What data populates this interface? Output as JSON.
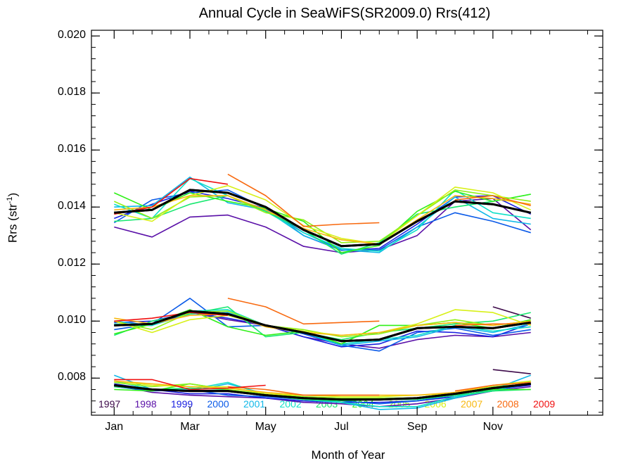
{
  "title": "Annual Cycle in SeaWiFS(SR2009.0) Rrs(412)",
  "xlabel": "Month of Year",
  "ylabel_main": "Rrs (str",
  "ylabel_sup": "-1",
  "ylabel_close": ")",
  "chart_data": {
    "type": "line",
    "title": "Annual Cycle in SeaWiFS(SR2009.0) Rrs(412)",
    "xlabel": "Month of Year",
    "ylabel": "Rrs (str-1)",
    "xlim": [
      0.4,
      13.9
    ],
    "ylim": [
      0.0067,
      0.0202
    ],
    "x_ticks": [
      {
        "value": 1,
        "label": "Jan"
      },
      {
        "value": 3,
        "label": "Mar"
      },
      {
        "value": 5,
        "label": "May"
      },
      {
        "value": 7,
        "label": "Jul"
      },
      {
        "value": 9,
        "label": "Sep"
      },
      {
        "value": 11,
        "label": "Nov"
      }
    ],
    "y_ticks": [
      {
        "value": 0.008,
        "label": "0.008"
      },
      {
        "value": 0.01,
        "label": "0.010"
      },
      {
        "value": 0.012,
        "label": "0.012"
      },
      {
        "value": 0.014,
        "label": "0.014"
      },
      {
        "value": 0.016,
        "label": "0.016"
      },
      {
        "value": 0.018,
        "label": "0.018"
      },
      {
        "value": 0.02,
        "label": "0.020"
      }
    ],
    "x": [
      1,
      2,
      3,
      4,
      5,
      6,
      7,
      8,
      9,
      10,
      11,
      12
    ],
    "groups": [
      "upper",
      "middle",
      "lower"
    ],
    "series": [
      {
        "name": "1997",
        "color": "#3d0a4a",
        "upper": [
          null,
          null,
          null,
          null,
          null,
          null,
          null,
          null,
          null,
          null,
          null,
          null
        ],
        "middle": [
          null,
          null,
          null,
          null,
          null,
          null,
          null,
          null,
          null,
          null,
          0.0105,
          0.0101
        ],
        "lower": [
          null,
          null,
          null,
          null,
          null,
          null,
          null,
          null,
          null,
          null,
          0.0083,
          0.00815
        ]
      },
      {
        "name": "1998",
        "color": "#5a10a8",
        "upper": [
          0.0133,
          0.01295,
          0.01365,
          0.01372,
          0.0133,
          0.01262,
          0.0124,
          0.0125,
          0.013,
          0.0142,
          0.0143,
          0.0132
        ],
        "middle": [
          0.00985,
          0.00985,
          0.0103,
          0.01005,
          0.00985,
          0.00945,
          0.0092,
          0.00905,
          0.00935,
          0.0095,
          0.00945,
          0.0096
        ],
        "lower": [
          0.00775,
          0.0075,
          0.0074,
          0.00735,
          0.0073,
          0.00715,
          0.0071,
          0.007,
          0.0071,
          0.0073,
          0.00755,
          0.0077
        ]
      },
      {
        "name": "1999",
        "color": "#1a20e0",
        "upper": [
          0.0136,
          0.0141,
          0.01455,
          0.0143,
          0.01395,
          0.013,
          0.01248,
          0.01255,
          0.0134,
          0.01435,
          0.0144,
          0.01375
        ],
        "middle": [
          0.00995,
          0.01,
          0.0103,
          0.0101,
          0.00985,
          0.00945,
          0.0091,
          0.0092,
          0.00965,
          0.0096,
          0.00945,
          0.0099
        ],
        "lower": [
          0.0078,
          0.0076,
          0.00745,
          0.00745,
          0.0073,
          0.0072,
          0.00715,
          0.00715,
          0.0072,
          0.00735,
          0.0076,
          0.00775
        ]
      },
      {
        "name": "2000",
        "color": "#0a5ae8",
        "upper": [
          0.01345,
          0.01425,
          0.0145,
          0.0146,
          0.01395,
          0.0131,
          0.0125,
          0.0125,
          0.0133,
          0.0138,
          0.0135,
          0.0131
        ],
        "middle": [
          0.0097,
          0.0099,
          0.0108,
          0.0098,
          0.00985,
          0.00955,
          0.00915,
          0.00895,
          0.0096,
          0.00975,
          0.0095,
          0.0097
        ],
        "lower": [
          0.0077,
          0.00755,
          0.0076,
          0.0074,
          0.00735,
          0.00725,
          0.0072,
          0.0071,
          0.0072,
          0.0074,
          0.00755,
          0.0078
        ]
      },
      {
        "name": "2001",
        "color": "#10b8e8",
        "upper": [
          0.014,
          0.01405,
          0.01505,
          0.01415,
          0.0139,
          0.013,
          0.0125,
          0.0124,
          0.0133,
          0.01435,
          0.0136,
          0.0134
        ],
        "middle": [
          0.01,
          0.00985,
          0.01025,
          0.0103,
          0.00985,
          0.0096,
          0.00915,
          0.0093,
          0.00945,
          0.0098,
          0.0096,
          0.0099
        ],
        "lower": [
          0.0081,
          0.0076,
          0.00755,
          0.0078,
          0.00745,
          0.00725,
          0.00715,
          0.0069,
          0.00695,
          0.0073,
          0.0076,
          0.0081
        ]
      },
      {
        "name": "2002",
        "color": "#10e0c8",
        "upper": [
          0.0141,
          0.0136,
          0.015,
          0.0144,
          0.01385,
          0.0131,
          0.01255,
          0.01245,
          0.0132,
          0.0146,
          0.0138,
          0.0136
        ],
        "middle": [
          0.0099,
          0.00985,
          0.01035,
          0.0104,
          0.00985,
          0.0096,
          0.0092,
          0.00935,
          0.0095,
          0.00985,
          0.00965,
          0.0098
        ],
        "lower": [
          0.0079,
          0.0076,
          0.0076,
          0.00785,
          0.0074,
          0.00725,
          0.00715,
          0.007,
          0.007,
          0.00735,
          0.00755,
          0.0079
        ]
      },
      {
        "name": "2003",
        "color": "#18e870",
        "upper": [
          0.0135,
          0.0136,
          0.0141,
          0.0144,
          0.01385,
          0.0132,
          0.01235,
          0.01275,
          0.01375,
          0.014,
          0.0142,
          0.01445
        ],
        "middle": [
          0.0095,
          0.01,
          0.01025,
          0.0105,
          0.00945,
          0.0096,
          0.00935,
          0.0096,
          0.00975,
          0.0099,
          0.01,
          0.0103
        ],
        "lower": [
          0.0077,
          0.0076,
          0.00765,
          0.0076,
          0.0074,
          0.00725,
          0.0072,
          0.00725,
          0.00725,
          0.0074,
          0.00755,
          0.0076
        ]
      },
      {
        "name": "2004",
        "color": "#30f018",
        "upper": [
          0.0145,
          0.0139,
          0.0145,
          0.0142,
          0.01395,
          0.0135,
          0.0124,
          0.01265,
          0.01385,
          0.01455,
          0.0142,
          0.01445
        ],
        "middle": [
          0.00955,
          0.0099,
          0.0104,
          0.0098,
          0.0095,
          0.00965,
          0.0092,
          0.00985,
          0.00985,
          0.00995,
          0.00975,
          0.01005
        ],
        "lower": [
          0.0076,
          0.00755,
          0.0078,
          0.0076,
          0.0074,
          0.0073,
          0.00725,
          0.0073,
          0.0073,
          0.00745,
          0.0076,
          0.0076
        ]
      },
      {
        "name": "2005",
        "color": "#90f018",
        "upper": [
          0.0142,
          0.0136,
          0.01435,
          0.0144,
          0.0138,
          0.01355,
          0.01275,
          0.0128,
          0.0137,
          0.0146,
          0.0144,
          0.0142
        ],
        "middle": [
          0.01,
          0.0097,
          0.0103,
          0.01035,
          0.00985,
          0.0097,
          0.00945,
          0.00955,
          0.00985,
          0.01005,
          0.00985,
          0.01
        ],
        "lower": [
          0.00785,
          0.0077,
          0.0078,
          0.0076,
          0.00745,
          0.00735,
          0.0073,
          0.0073,
          0.0073,
          0.00745,
          0.0077,
          0.0078
        ]
      },
      {
        "name": "2006",
        "color": "#d8f018",
        "upper": [
          0.0138,
          0.0135,
          0.0144,
          0.01475,
          0.01425,
          0.01335,
          0.0129,
          0.0127,
          0.0137,
          0.0147,
          0.0145,
          0.0139
        ],
        "middle": [
          0.01,
          0.0096,
          0.01005,
          0.0102,
          0.00985,
          0.00965,
          0.0095,
          0.0096,
          0.0099,
          0.0104,
          0.0103,
          0.00985
        ],
        "lower": [
          0.0079,
          0.00775,
          0.0077,
          0.0077,
          0.00745,
          0.0074,
          0.00735,
          0.00735,
          0.0074,
          0.00745,
          0.00775,
          0.0079
        ]
      },
      {
        "name": "2007",
        "color": "#f8b810",
        "upper": [
          0.0139,
          0.014,
          0.0144,
          0.0144,
          0.0139,
          0.01325,
          0.01285,
          0.0127,
          0.01355,
          0.0144,
          0.0143,
          0.0141
        ],
        "middle": [
          0.0101,
          0.0099,
          0.0102,
          0.01025,
          0.0098,
          0.0096,
          0.0095,
          0.0096,
          0.00985,
          0.00995,
          0.00985,
          0.01
        ],
        "lower": [
          0.0079,
          0.0078,
          0.0077,
          0.00765,
          0.0075,
          0.0074,
          0.0074,
          0.0074,
          0.0074,
          0.0075,
          0.00775,
          0.00785
        ]
      },
      {
        "name": "2008",
        "color": "#f86a10",
        "upper": [
          null,
          null,
          null,
          0.01515,
          0.0144,
          0.01332,
          0.0134,
          0.01345,
          null,
          0.01425,
          0.0144,
          0.01405
        ],
        "middle": [
          null,
          null,
          null,
          0.0108,
          0.0105,
          0.0099,
          0.00995,
          0.01,
          null,
          0.00985,
          0.0099,
          0.0099
        ],
        "lower": [
          null,
          null,
          null,
          0.0077,
          0.0076,
          0.0074,
          0.0074,
          0.0074,
          null,
          0.00755,
          0.00775,
          0.00785
        ]
      },
      {
        "name": "2009",
        "color": "#f01010",
        "upper": [
          0.01375,
          0.014,
          0.015,
          0.0148,
          null,
          null,
          null,
          null,
          null,
          null,
          null,
          null
        ],
        "middle": [
          0.01,
          0.0101,
          0.0103,
          0.0102,
          null,
          null,
          null,
          null,
          null,
          null,
          null,
          null
        ],
        "lower": [
          0.00795,
          0.00795,
          0.0076,
          0.00765,
          0.00775,
          null,
          null,
          null,
          null,
          null,
          null,
          null
        ]
      },
      {
        "name": "",
        "color": "#000000",
        "mean": true,
        "upper": [
          0.0138,
          0.0139,
          0.0146,
          0.0145,
          0.014,
          0.0132,
          0.01263,
          0.0127,
          0.0135,
          0.0142,
          0.0141,
          0.0138
        ],
        "middle": [
          0.00985,
          0.0099,
          0.01035,
          0.01025,
          0.00985,
          0.0096,
          0.0093,
          0.00935,
          0.00975,
          0.0098,
          0.00975,
          0.00995
        ],
        "lower": [
          0.00775,
          0.0076,
          0.00755,
          0.00755,
          0.0074,
          0.0073,
          0.00725,
          0.00725,
          0.0073,
          0.00745,
          0.00765,
          0.0078
        ]
      }
    ]
  }
}
